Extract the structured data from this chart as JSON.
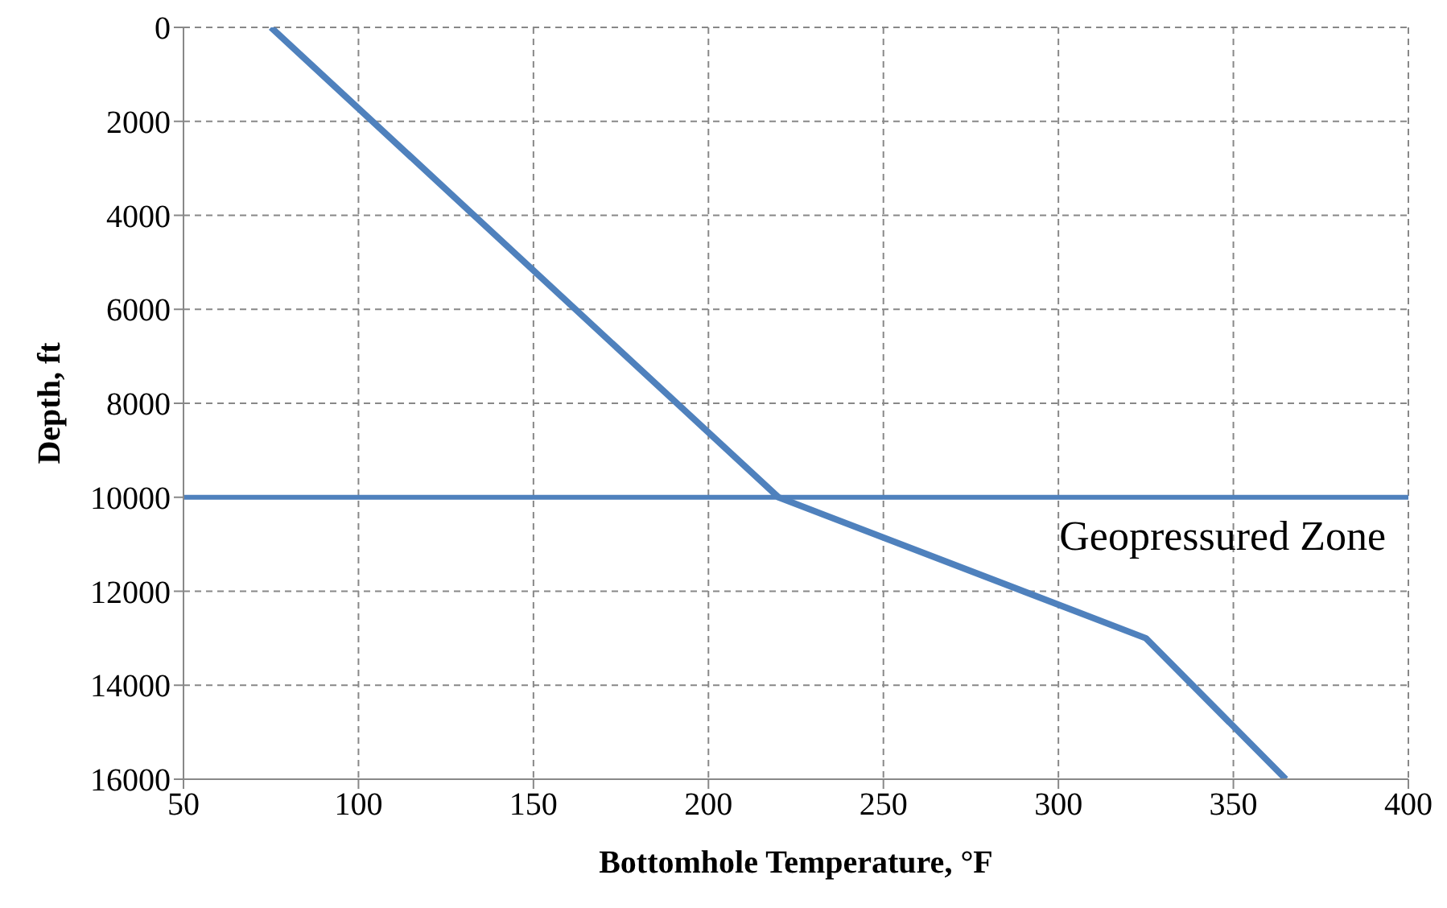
{
  "chart_data": {
    "type": "line",
    "xlabel": "Bottomhole Temperature, °F",
    "ylabel": "Depth, ft",
    "x": [
      75,
      220,
      325,
      365
    ],
    "series": [
      {
        "color": "#4f81bd",
        "values": [
          0,
          10000,
          13000,
          16000
        ]
      }
    ],
    "xlim": [
      50,
      400
    ],
    "xticks": [
      50,
      100,
      150,
      200,
      250,
      300,
      350,
      400
    ],
    "ylim": [
      16000,
      0
    ],
    "yticks": [
      0,
      2000,
      4000,
      6000,
      8000,
      10000,
      12000,
      14000,
      16000
    ],
    "ref_lines": [
      {
        "axis": "y",
        "value": 10000,
        "label": "Geopressured Zone",
        "color": "#4f81bd"
      }
    ],
    "grid": true,
    "legend": false,
    "marker": "none",
    "line_style": "solid"
  }
}
